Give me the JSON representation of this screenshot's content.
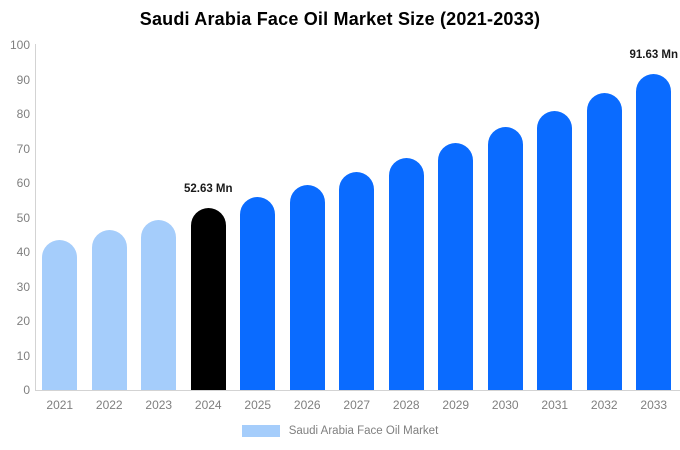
{
  "title": "Saudi Arabia Face Oil Market Size (2021-2033)",
  "chart_data": {
    "type": "bar",
    "categories": [
      "2021",
      "2022",
      "2023",
      "2024",
      "2025",
      "2026",
      "2027",
      "2028",
      "2029",
      "2030",
      "2031",
      "2032",
      "2033"
    ],
    "values": [
      43.6,
      46.4,
      49.3,
      52.63,
      56.0,
      59.5,
      63.3,
      67.3,
      71.6,
      76.2,
      81.0,
      86.2,
      91.63
    ],
    "bar_colors": [
      "#a5cdfb",
      "#a5cdfb",
      "#a5cdfb",
      "#000000",
      "#0a6bff",
      "#0a6bff",
      "#0a6bff",
      "#0a6bff",
      "#0a6bff",
      "#0a6bff",
      "#0a6bff",
      "#0a6bff",
      "#0a6bff"
    ],
    "value_labels": [
      null,
      null,
      null,
      "52.63 Mn",
      null,
      null,
      null,
      null,
      null,
      null,
      null,
      null,
      "91.63 Mn"
    ],
    "title": "Saudi Arabia Face Oil Market Size (2021-2033)",
    "xlabel": "",
    "ylabel": "",
    "ylim": [
      0,
      100
    ],
    "yticks": [
      0,
      10,
      20,
      30,
      40,
      50,
      60,
      70,
      80,
      90,
      100
    ],
    "grid": false,
    "legend": {
      "label": "Saudi Arabia Face Oil Market",
      "swatch_color": "#a5cdfb",
      "position": "bottom"
    }
  },
  "colors": {
    "historical_bar": "#a5cdfb",
    "base_year_bar": "#000000",
    "forecast_bar": "#0a6bff",
    "axis_line": "#d3d3d3",
    "tick_text": "#7f7f7f",
    "title_text": "#000000",
    "value_label_text": "#1a1a1a"
  }
}
